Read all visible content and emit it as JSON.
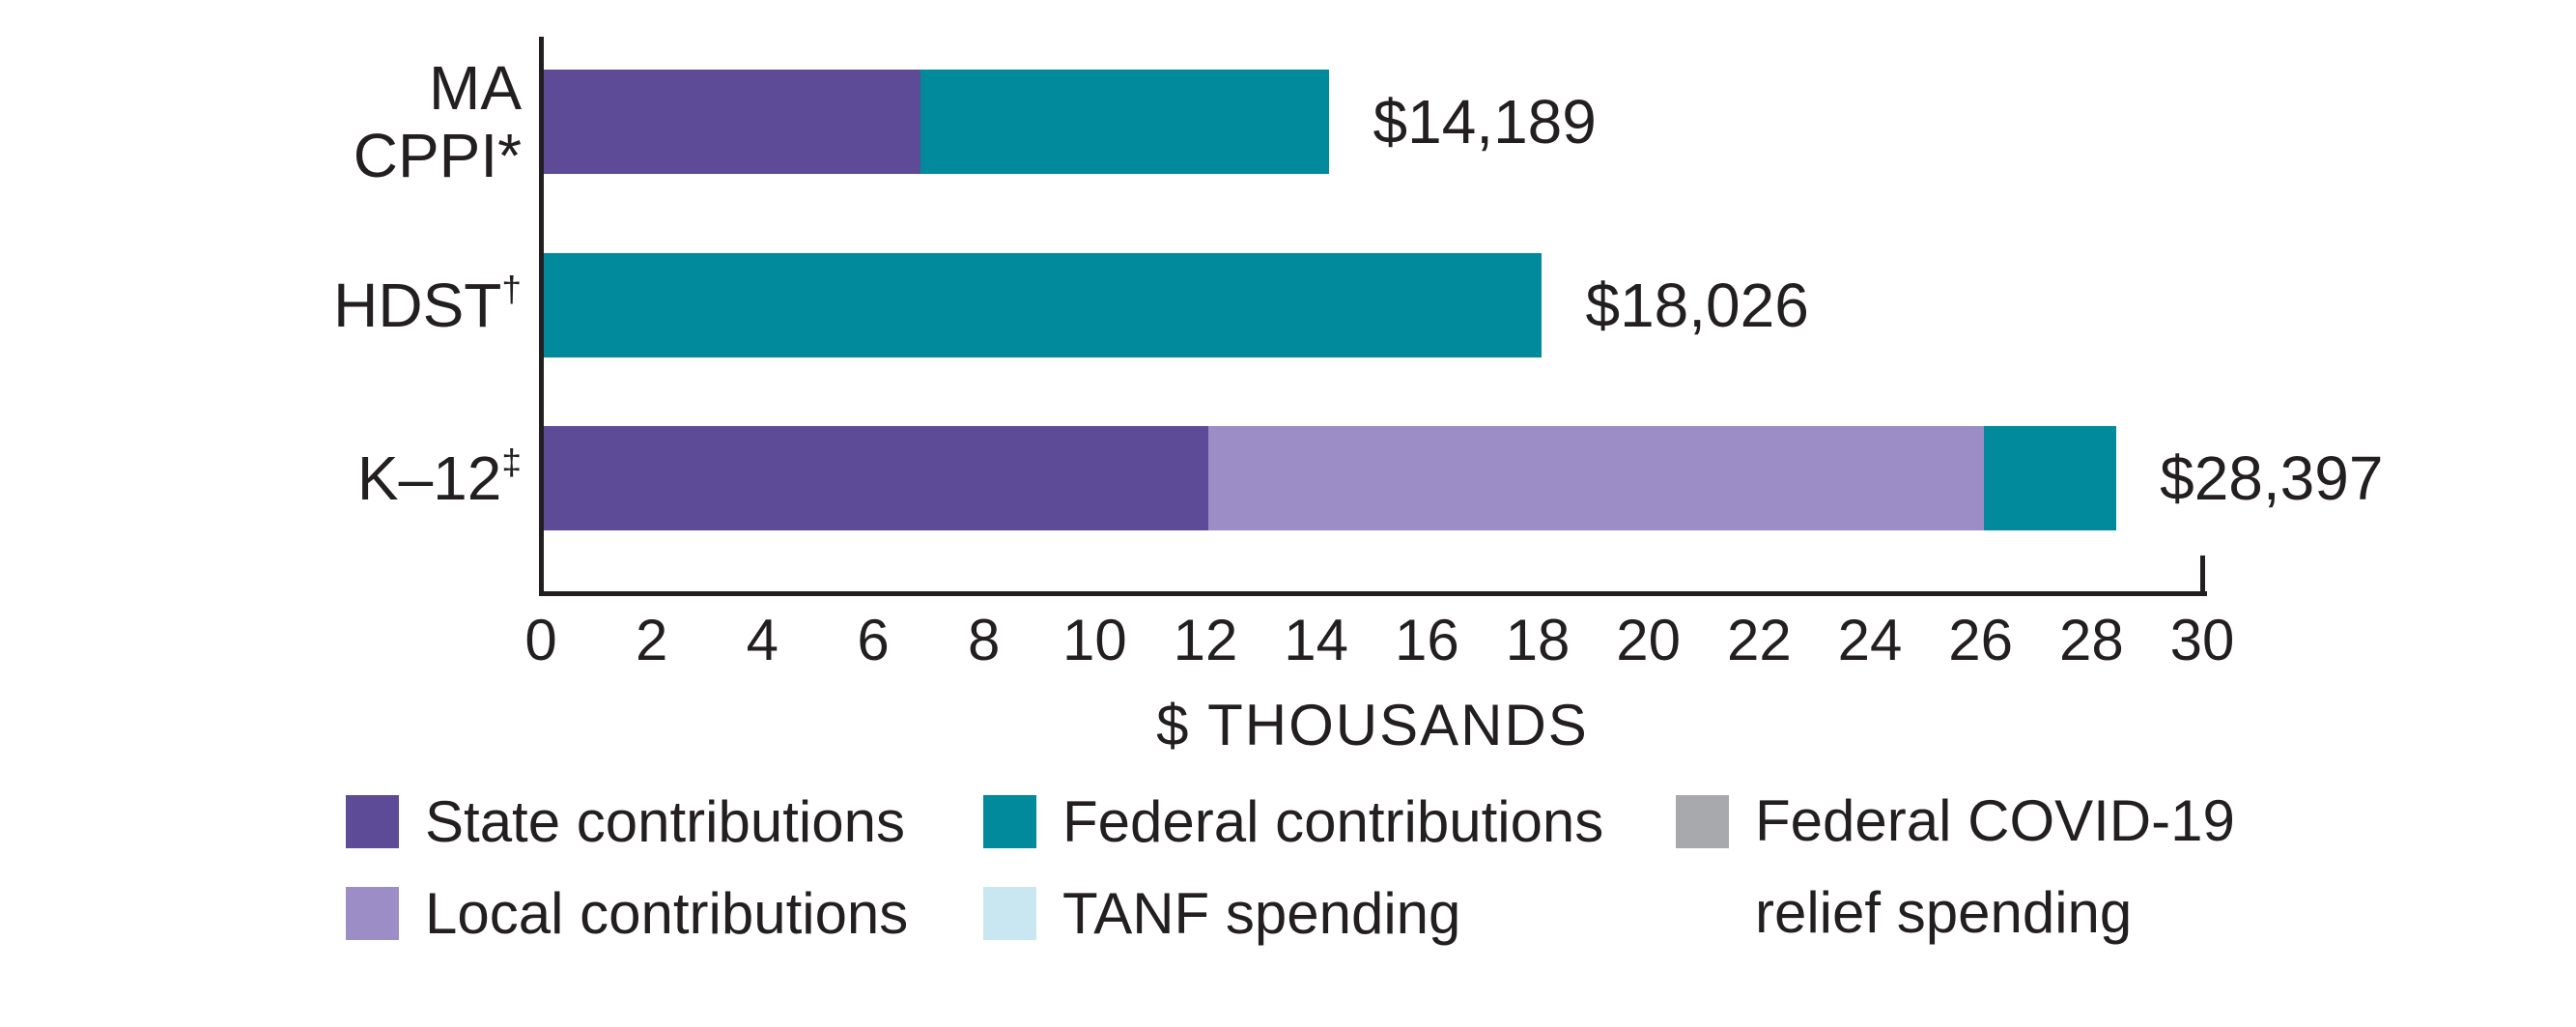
{
  "chart_data": {
    "type": "bar",
    "orientation": "horizontal",
    "stacked": true,
    "title": "",
    "xlabel": "$ THOUSANDS",
    "xlim": [
      0,
      30
    ],
    "xtick_labels": [
      "0",
      "2",
      "4",
      "6",
      "8",
      "10",
      "12",
      "14",
      "16",
      "18",
      "20",
      "22",
      "24",
      "26",
      "28",
      "30"
    ],
    "grid": false,
    "axis_unit": "thousands of dollars",
    "rows": [
      {
        "category": "MA CPPI*",
        "label_lines": [
          "MA",
          "CPPI*"
        ],
        "label_sup": "",
        "total": 14189,
        "total_label": "$14,189",
        "segments": [
          {
            "series": "State contributions",
            "value": 6800
          },
          {
            "series": "Federal contributions",
            "value": 7389
          }
        ]
      },
      {
        "category": "HDST†",
        "label_lines": [
          "HDST"
        ],
        "label_sup": "†",
        "total": 18026,
        "total_label": "$18,026",
        "segments": [
          {
            "series": "Federal contributions",
            "value": 18026
          }
        ]
      },
      {
        "category": "K–12‡",
        "label_lines": [
          "K–12"
        ],
        "label_sup": "‡",
        "total": 28397,
        "total_label": "$28,397",
        "segments": [
          {
            "series": "State contributions",
            "value": 12000
          },
          {
            "series": "Local contributions",
            "value": 14000
          },
          {
            "series": "Federal contributions",
            "value": 2397
          }
        ]
      }
    ],
    "series_colors": {
      "State contributions": "#5E4B97",
      "Local contributions": "#9C8DC6",
      "Federal contributions": "#008A9C",
      "TANF spending": "#C8E7F0",
      "Federal COVID-19 relief spending": "#A7A9AC"
    },
    "legend_position": "bottom"
  },
  "legend": {
    "items": [
      {
        "label": "State contributions",
        "color": "#5E4B97",
        "lines": [
          "State contributions"
        ]
      },
      {
        "label": "Local contributions",
        "color": "#9C8DC6",
        "lines": [
          "Local contributions"
        ]
      },
      {
        "label": "Federal contributions",
        "color": "#008A9C",
        "lines": [
          "Federal contributions"
        ]
      },
      {
        "label": "TANF spending",
        "color": "#C8E7F0",
        "lines": [
          "TANF spending"
        ]
      },
      {
        "label": "Federal COVID-19 relief spending",
        "color": "#A7A9AC",
        "lines": [
          "Federal COVID-19",
          "relief spending"
        ]
      }
    ]
  },
  "colors": {
    "text": "#231F20",
    "axis": "#231F20",
    "background": "#FFFFFF"
  }
}
